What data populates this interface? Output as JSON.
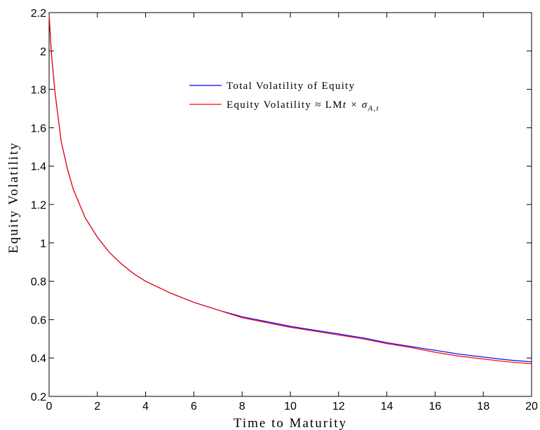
{
  "chart_data": {
    "type": "line",
    "xlabel": "Time to Maturity",
    "ylabel": "Equity Volatility",
    "xlim": [
      0,
      20
    ],
    "ylim": [
      0.2,
      2.2
    ],
    "xticks": [
      "0",
      "2",
      "4",
      "6",
      "8",
      "10",
      "12",
      "14",
      "16",
      "18",
      "20"
    ],
    "yticks": [
      "0.2",
      "0.4",
      "0.6",
      "0.8",
      "1",
      "1.2",
      "1.4",
      "1.6",
      "1.8",
      "2",
      "2.2"
    ],
    "grid": false,
    "legend_position": "top-center",
    "x": [
      0,
      0.1,
      0.25,
      0.5,
      0.75,
      1,
      1.5,
      2,
      2.5,
      3,
      3.5,
      4,
      5,
      6,
      7,
      8,
      9,
      10,
      11,
      12,
      13,
      14,
      15,
      16,
      17,
      18,
      19,
      20
    ],
    "series": [
      {
        "name": "Total Volatility of Equity",
        "color": "#0000ff",
        "values": [
          2.19,
          1.98,
          1.78,
          1.53,
          1.39,
          1.28,
          1.13,
          1.03,
          0.95,
          0.89,
          0.84,
          0.8,
          0.74,
          0.69,
          0.65,
          0.615,
          0.59,
          0.565,
          0.545,
          0.525,
          0.505,
          0.48,
          0.46,
          0.44,
          0.42,
          0.405,
          0.39,
          0.38
        ]
      },
      {
        "name": "Equity Volatility ≈ LM",
        "legend_suffix": "t × σ",
        "legend_sub": "A,t",
        "color": "#ff0000",
        "values": [
          2.19,
          1.98,
          1.78,
          1.53,
          1.39,
          1.28,
          1.13,
          1.03,
          0.95,
          0.89,
          0.84,
          0.8,
          0.74,
          0.69,
          0.65,
          0.61,
          0.585,
          0.56,
          0.54,
          0.52,
          0.5,
          0.475,
          0.455,
          0.43,
          0.41,
          0.395,
          0.38,
          0.37
        ]
      }
    ]
  }
}
